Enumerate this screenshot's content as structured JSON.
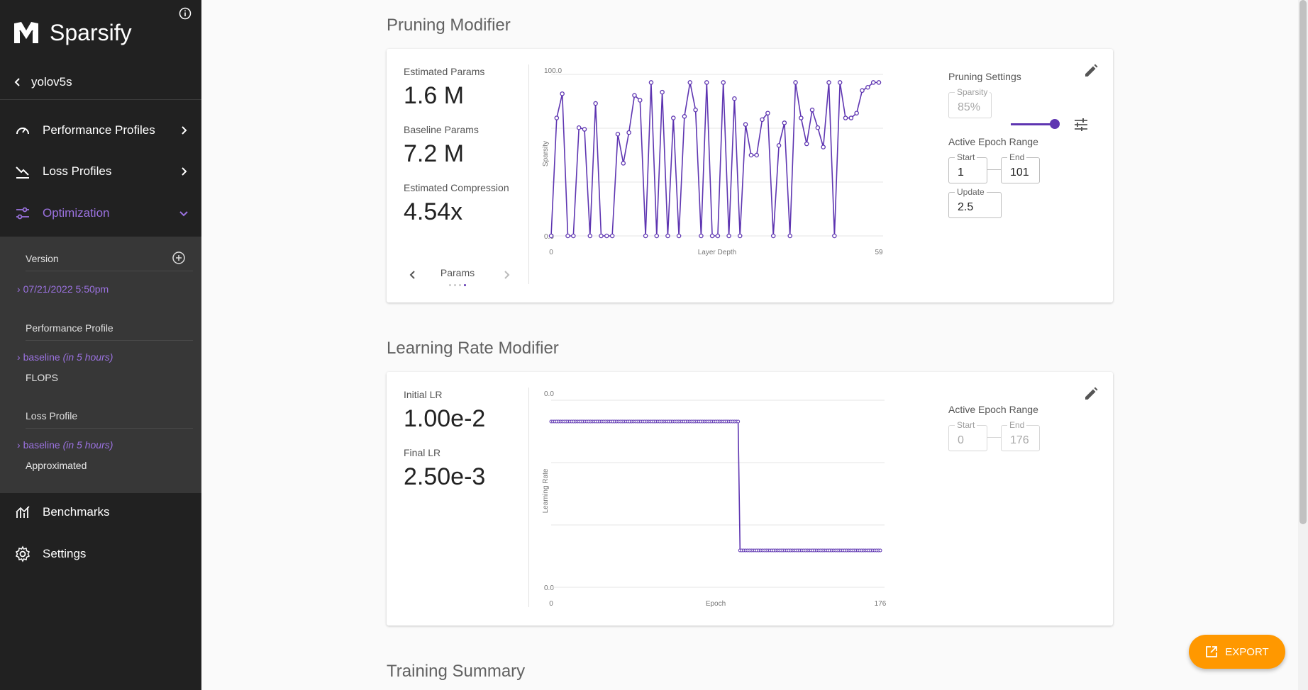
{
  "brand": {
    "name": "Sparsify",
    "logo_icon": "sparsify-logo-icon",
    "info_icon": "info-icon"
  },
  "project": {
    "name": "yolov5s"
  },
  "nav": {
    "performance": "Performance Profiles",
    "loss": "Loss Profiles",
    "optimization": "Optimization",
    "benchmarks": "Benchmarks",
    "settings": "Settings"
  },
  "optimization_panel": {
    "version_label": "Version",
    "version_value": "07/21/2022 5:50pm",
    "perf_label": "Performance Profile",
    "perf_link": "baseline",
    "perf_link_note": "(in 5 hours)",
    "perf_sub": "FLOPS",
    "loss_label": "Loss Profile",
    "loss_link": "baseline",
    "loss_link_note": "(in 5 hours)",
    "loss_sub": "Approximated"
  },
  "pruning": {
    "title": "Pruning Modifier",
    "est_params_label": "Estimated Params",
    "est_params": "1.6 M",
    "base_params_label": "Baseline Params",
    "base_params": "7.2 M",
    "compression_label": "Estimated Compression",
    "compression": "4.54x",
    "carousel_label": "Params",
    "settings_title": "Pruning Settings",
    "sparsity_label": "Sparsity",
    "sparsity_value": "85%",
    "sparsity_level": 0.85,
    "epoch_title": "Active Epoch Range",
    "start_label": "Start",
    "start_value": "1",
    "end_label": "End",
    "end_value": "101",
    "update_label": "Update",
    "update_value": "2.5"
  },
  "lr": {
    "title": "Learning Rate Modifier",
    "initial_label": "Initial LR",
    "initial": "1.00e-2",
    "final_label": "Final LR",
    "final": "2.50e-3",
    "epoch_title": "Active Epoch Range",
    "start_label": "Start",
    "start_value": "0",
    "end_label": "End",
    "end_value": "176"
  },
  "training_summary": {
    "title": "Training Summary"
  },
  "export": {
    "label": "EXPORT"
  },
  "chart_data": [
    {
      "type": "line",
      "xlabel": "Layer Depth",
      "ylabel": "Sparsity",
      "ytick_top": "100.0",
      "ytick_bottom": "0.0",
      "xtick_left": "0",
      "xtick_right": "59",
      "xlim": [
        0,
        59
      ],
      "ylim": [
        0,
        100
      ],
      "grid": true,
      "color": "#5e35b1",
      "values": [
        0,
        73,
        88,
        0,
        0,
        67,
        66,
        0,
        82,
        0,
        0,
        0,
        63,
        45,
        64,
        87,
        84,
        0,
        95,
        0,
        89,
        0,
        73,
        0,
        74,
        95,
        78,
        0,
        95,
        0,
        0,
        95,
        0,
        85,
        0,
        69,
        50,
        50,
        72,
        76,
        0,
        56,
        70,
        0,
        95,
        73,
        57,
        78,
        67,
        55,
        95,
        0,
        95,
        73,
        73,
        76,
        90,
        92,
        95,
        95
      ]
    },
    {
      "type": "line",
      "xlabel": "Epoch",
      "ylabel": "Learning Rate",
      "ytick_top": "0.0",
      "ytick_bottom": "0.0",
      "xtick_left": "0",
      "xtick_right": "176",
      "xlim": [
        0,
        176
      ],
      "grid": true,
      "color": "#5e35b1",
      "segments": [
        {
          "from_epoch": 0,
          "to_epoch": 100,
          "lr": 0.01
        },
        {
          "from_epoch": 101,
          "to_epoch": 176,
          "lr": 0.0025
        }
      ]
    }
  ]
}
